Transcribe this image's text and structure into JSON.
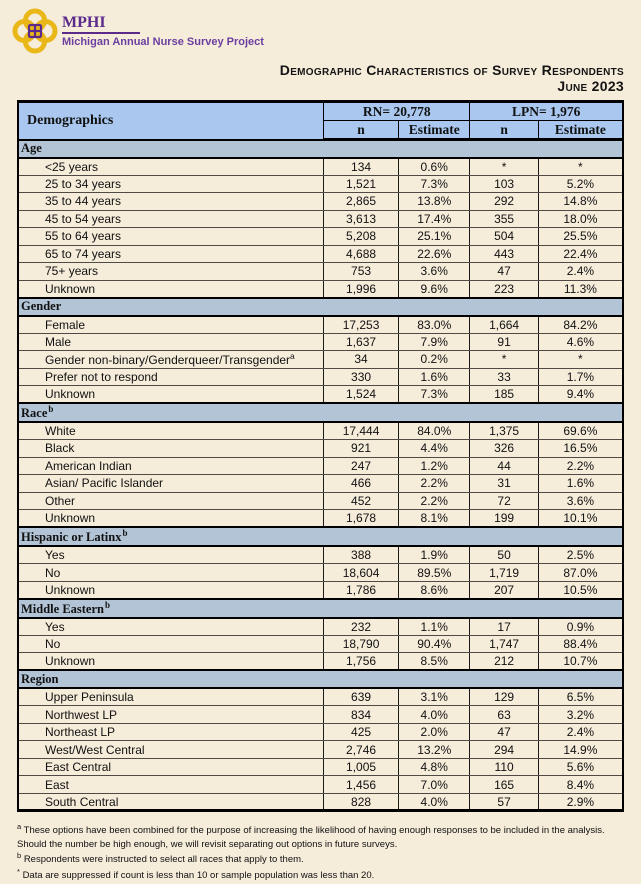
{
  "logo": {
    "name": "MPHI",
    "subtitle": "Michigan Annual Nurse Survey Project"
  },
  "title": {
    "line1": "Demographic Characteristics of Survey Respondents",
    "line2": "June 2023"
  },
  "colors": {
    "page_background": "#f5ecda",
    "header_blue": "#aac8ef",
    "section_blue": "#b2c4d6",
    "brand_purple": "#5b2a8a",
    "logo_gold": "#e9b818"
  },
  "table": {
    "demographics_header": "Demographics",
    "group_headers": [
      {
        "label": "RN= 20,778"
      },
      {
        "label": "LPN= 1,976"
      }
    ],
    "sub_headers": [
      "n",
      "Estimate",
      "n",
      "Estimate"
    ],
    "sections": [
      {
        "name": "Age",
        "sup": "",
        "rows": [
          {
            "label": "<25 years",
            "sup": "",
            "rn_n": "134",
            "rn_est": "0.6%",
            "lpn_n": "*",
            "lpn_est": "*"
          },
          {
            "label": "25 to 34 years",
            "sup": "",
            "rn_n": "1,521",
            "rn_est": "7.3%",
            "lpn_n": "103",
            "lpn_est": "5.2%"
          },
          {
            "label": "35 to 44 years",
            "sup": "",
            "rn_n": "2,865",
            "rn_est": "13.8%",
            "lpn_n": "292",
            "lpn_est": "14.8%"
          },
          {
            "label": "45 to 54 years",
            "sup": "",
            "rn_n": "3,613",
            "rn_est": "17.4%",
            "lpn_n": "355",
            "lpn_est": "18.0%"
          },
          {
            "label": "55 to 64 years",
            "sup": "",
            "rn_n": "5,208",
            "rn_est": "25.1%",
            "lpn_n": "504",
            "lpn_est": "25.5%"
          },
          {
            "label": "65 to 74 years",
            "sup": "",
            "rn_n": "4,688",
            "rn_est": "22.6%",
            "lpn_n": "443",
            "lpn_est": "22.4%"
          },
          {
            "label": "75+ years",
            "sup": "",
            "rn_n": "753",
            "rn_est": "3.6%",
            "lpn_n": "47",
            "lpn_est": "2.4%"
          },
          {
            "label": "Unknown",
            "sup": "",
            "rn_n": "1,996",
            "rn_est": "9.6%",
            "lpn_n": "223",
            "lpn_est": "11.3%"
          }
        ]
      },
      {
        "name": "Gender",
        "sup": "",
        "rows": [
          {
            "label": "Female",
            "sup": "",
            "rn_n": "17,253",
            "rn_est": "83.0%",
            "lpn_n": "1,664",
            "lpn_est": "84.2%"
          },
          {
            "label": "Male",
            "sup": "",
            "rn_n": "1,637",
            "rn_est": "7.9%",
            "lpn_n": "91",
            "lpn_est": "4.6%"
          },
          {
            "label": "Gender non-binary/Genderqueer/Transgender",
            "sup": "a",
            "rn_n": "34",
            "rn_est": "0.2%",
            "lpn_n": "*",
            "lpn_est": "*"
          },
          {
            "label": "Prefer not to respond",
            "sup": "",
            "rn_n": "330",
            "rn_est": "1.6%",
            "lpn_n": "33",
            "lpn_est": "1.7%"
          },
          {
            "label": "Unknown",
            "sup": "",
            "rn_n": "1,524",
            "rn_est": "7.3%",
            "lpn_n": "185",
            "lpn_est": "9.4%"
          }
        ]
      },
      {
        "name": "Race",
        "sup": "b",
        "rows": [
          {
            "label": "White",
            "sup": "",
            "rn_n": "17,444",
            "rn_est": "84.0%",
            "lpn_n": "1,375",
            "lpn_est": "69.6%"
          },
          {
            "label": "Black",
            "sup": "",
            "rn_n": "921",
            "rn_est": "4.4%",
            "lpn_n": "326",
            "lpn_est": "16.5%"
          },
          {
            "label": "American Indian",
            "sup": "",
            "rn_n": "247",
            "rn_est": "1.2%",
            "lpn_n": "44",
            "lpn_est": "2.2%"
          },
          {
            "label": "Asian/ Pacific Islander",
            "sup": "",
            "rn_n": "466",
            "rn_est": "2.2%",
            "lpn_n": "31",
            "lpn_est": "1.6%"
          },
          {
            "label": "Other",
            "sup": "",
            "rn_n": "452",
            "rn_est": "2.2%",
            "lpn_n": "72",
            "lpn_est": "3.6%"
          },
          {
            "label": "Unknown",
            "sup": "",
            "rn_n": "1,678",
            "rn_est": "8.1%",
            "lpn_n": "199",
            "lpn_est": "10.1%"
          }
        ]
      },
      {
        "name": "Hispanic or Latinx",
        "sup": "b",
        "rows": [
          {
            "label": "Yes",
            "sup": "",
            "rn_n": "388",
            "rn_est": "1.9%",
            "lpn_n": "50",
            "lpn_est": "2.5%"
          },
          {
            "label": "No",
            "sup": "",
            "rn_n": "18,604",
            "rn_est": "89.5%",
            "lpn_n": "1,719",
            "lpn_est": "87.0%"
          },
          {
            "label": "Unknown",
            "sup": "",
            "rn_n": "1,786",
            "rn_est": "8.6%",
            "lpn_n": "207",
            "lpn_est": "10.5%"
          }
        ]
      },
      {
        "name": "Middle Eastern",
        "sup": "b",
        "rows": [
          {
            "label": "Yes",
            "sup": "",
            "rn_n": "232",
            "rn_est": "1.1%",
            "lpn_n": "17",
            "lpn_est": "0.9%"
          },
          {
            "label": "No",
            "sup": "",
            "rn_n": "18,790",
            "rn_est": "90.4%",
            "lpn_n": "1,747",
            "lpn_est": "88.4%"
          },
          {
            "label": "Unknown",
            "sup": "",
            "rn_n": "1,756",
            "rn_est": "8.5%",
            "lpn_n": "212",
            "lpn_est": "10.7%"
          }
        ]
      },
      {
        "name": "Region",
        "sup": "",
        "rows": [
          {
            "label": "Upper Peninsula",
            "sup": "",
            "rn_n": "639",
            "rn_est": "3.1%",
            "lpn_n": "129",
            "lpn_est": "6.5%"
          },
          {
            "label": "Northwest LP",
            "sup": "",
            "rn_n": "834",
            "rn_est": "4.0%",
            "lpn_n": "63",
            "lpn_est": "3.2%"
          },
          {
            "label": "Northeast LP",
            "sup": "",
            "rn_n": "425",
            "rn_est": "2.0%",
            "lpn_n": "47",
            "lpn_est": "2.4%"
          },
          {
            "label": "West/West Central",
            "sup": "",
            "rn_n": "2,746",
            "rn_est": "13.2%",
            "lpn_n": "294",
            "lpn_est": "14.9%"
          },
          {
            "label": "East Central",
            "sup": "",
            "rn_n": "1,005",
            "rn_est": "4.8%",
            "lpn_n": "110",
            "lpn_est": "5.6%"
          },
          {
            "label": "East",
            "sup": "",
            "rn_n": "1,456",
            "rn_est": "7.0%",
            "lpn_n": "165",
            "lpn_est": "8.4%"
          },
          {
            "label": "South Central",
            "sup": "",
            "rn_n": "828",
            "rn_est": "4.0%",
            "lpn_n": "57",
            "lpn_est": "2.9%"
          }
        ]
      }
    ]
  },
  "footnotes": [
    {
      "marker": "a",
      "text": "These options have been combined for the purpose of increasing the likelihood of having enough responses to be included in the analysis. Should the number be high enough, we will revisit separating out options in future surveys."
    },
    {
      "marker": "b",
      "text": "Respondents were instructed to select all races that apply to them."
    },
    {
      "marker": "*",
      "text": "Data are suppressed if count is less than 10 or sample population was less than 20."
    }
  ]
}
